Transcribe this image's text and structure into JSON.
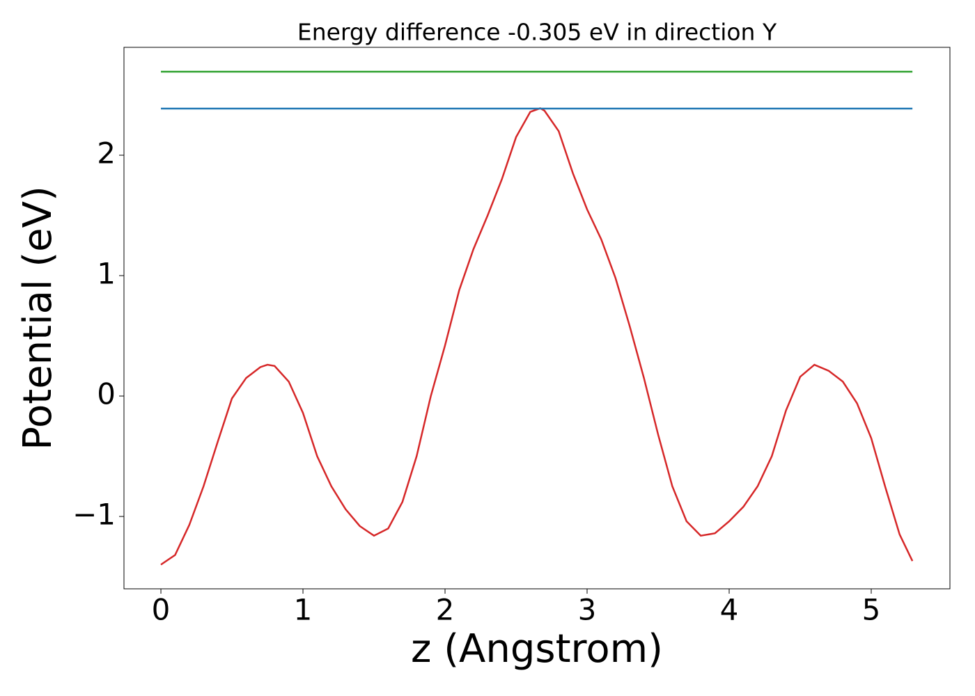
{
  "chart_data": {
    "type": "line",
    "title": "Energy difference -0.305 eV in direction Y",
    "x_label": "z (Angstrom)",
    "y_label": "Potential (eV)",
    "xlim": [
      -0.26,
      5.554
    ],
    "ylim": [
      -1.601,
      2.896
    ],
    "xticks": [
      0,
      1,
      2,
      3,
      4,
      5
    ],
    "yticks": [
      {
        "value": -1,
        "label": "−1"
      },
      0,
      1,
      2
    ],
    "series": [
      {
        "color": "#d62728",
        "x": [
          0,
          0.1,
          0.2,
          0.3,
          0.4,
          0.5,
          0.6,
          0.7,
          0.75,
          0.8,
          0.9,
          1.0,
          1.1,
          1.2,
          1.3,
          1.4,
          1.5,
          1.6,
          1.7,
          1.8,
          1.9,
          2.0,
          2.1,
          2.2,
          2.3,
          2.4,
          2.5,
          2.6,
          2.67,
          2.7,
          2.8,
          2.9,
          3.0,
          3.1,
          3.2,
          3.3,
          3.4,
          3.5,
          3.6,
          3.7,
          3.8,
          3.9,
          4.0,
          4.1,
          4.2,
          4.3,
          4.4,
          4.5,
          4.6,
          4.7,
          4.8,
          4.9,
          5.0,
          5.1,
          5.2,
          5.29
        ],
        "values": [
          -1.4,
          -1.32,
          -1.07,
          -0.75,
          -0.38,
          -0.02,
          0.15,
          0.24,
          0.26,
          0.25,
          0.12,
          -0.14,
          -0.5,
          -0.75,
          -0.94,
          -1.08,
          -1.16,
          -1.1,
          -0.88,
          -0.5,
          0.0,
          0.42,
          0.88,
          1.22,
          1.5,
          1.8,
          2.15,
          2.36,
          2.39,
          2.37,
          2.2,
          1.85,
          1.55,
          1.3,
          0.98,
          0.58,
          0.15,
          -0.32,
          -0.75,
          -1.04,
          -1.16,
          -1.14,
          -1.04,
          -0.92,
          -0.75,
          -0.5,
          -0.12,
          0.16,
          0.26,
          0.21,
          0.12,
          -0.06,
          -0.35,
          -0.76,
          -1.15,
          -1.37
        ]
      },
      {
        "color": "#1f77b4",
        "x": [
          0,
          5.29
        ],
        "values": [
          2.387,
          2.387
        ]
      },
      {
        "color": "#2ca02c",
        "x": [
          0,
          5.29
        ],
        "values": [
          2.694,
          2.694
        ]
      }
    ]
  }
}
